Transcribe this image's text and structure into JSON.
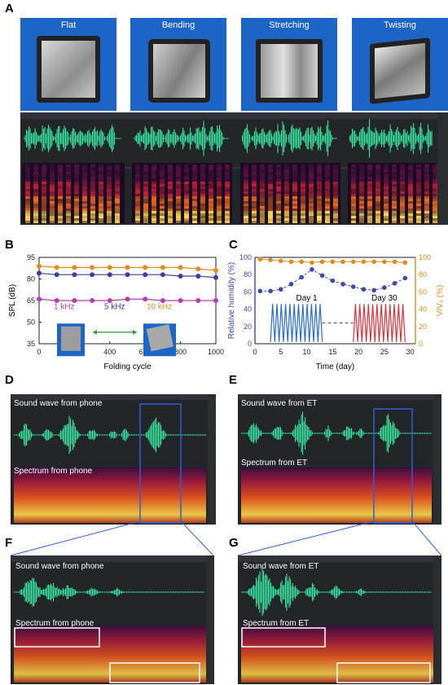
{
  "panels": {
    "A": {
      "label": "A",
      "photos": [
        "Flat",
        "Bending",
        "Stretching",
        "Twisting"
      ]
    },
    "B": {
      "label": "B"
    },
    "C": {
      "label": "C"
    },
    "D": {
      "label": "D",
      "wave_caption": "Sound wave from phone",
      "spec_caption": "Spectrum from phone"
    },
    "E": {
      "label": "E",
      "wave_caption": "Sound wave from ET",
      "spec_caption": "Spectrum from ET"
    },
    "F": {
      "label": "F",
      "wave_caption": "Sound wave from phone",
      "spec_caption": "Spectrum from phone"
    },
    "G": {
      "label": "G",
      "wave_caption": "Sound wave from ET",
      "spec_caption": "Spectrum from ET"
    }
  },
  "chart_data": [
    {
      "type": "line",
      "panel": "B",
      "xlabel": "Folding cycle",
      "ylabel": "SPL (dB)",
      "xlim": [
        0,
        1000
      ],
      "ylim": [
        35,
        95
      ],
      "yticks": [
        35,
        50,
        65,
        80,
        95
      ],
      "xticks": [
        0,
        200,
        400,
        600,
        800,
        1000
      ],
      "x": [
        0,
        100,
        200,
        300,
        400,
        500,
        600,
        700,
        800,
        900,
        1000
      ],
      "series": [
        {
          "name": "10 kHz",
          "color": "#e38b1e",
          "values": [
            89,
            88,
            88,
            88,
            88,
            88,
            88,
            88,
            88,
            87,
            86
          ]
        },
        {
          "name": "5 kHz",
          "color": "#3c3fa0",
          "values": [
            84,
            83,
            83,
            83,
            83,
            83,
            83,
            83,
            82,
            82,
            81
          ]
        },
        {
          "name": "1 kHz",
          "color": "#b43eb0",
          "values": [
            66,
            65,
            65,
            65,
            65,
            66,
            66,
            65,
            65,
            65,
            65
          ]
        }
      ],
      "legend": [
        "1 kHz",
        "5 kHz",
        "10 kHz"
      ]
    },
    {
      "type": "line",
      "panel": "C",
      "xlabel": "Time (day)",
      "ylabel": "Relative humidity (%)",
      "ylabel_right": "V/V₀ (%)",
      "xlim": [
        0,
        31
      ],
      "ylim": [
        0,
        100
      ],
      "xticks": [
        0,
        5,
        10,
        15,
        20,
        25,
        30
      ],
      "yticks": [
        0,
        20,
        40,
        60,
        80,
        100
      ],
      "annotations": [
        "Day 1",
        "Day 30"
      ],
      "series": [
        {
          "name": "Relative humidity",
          "axis": "left",
          "color": "#3c4aa8",
          "x": [
            1,
            3,
            5,
            7,
            9,
            11,
            13,
            15,
            17,
            19,
            21,
            23,
            25,
            27,
            29
          ],
          "values": [
            61,
            61,
            63,
            69,
            77,
            86,
            79,
            73,
            69,
            66,
            63,
            62,
            65,
            70,
            76
          ]
        },
        {
          "name": "V/V0",
          "axis": "right",
          "color": "#e38b1e",
          "x": [
            1,
            3,
            5,
            7,
            9,
            11,
            13,
            15,
            17,
            19,
            21,
            23,
            25,
            27,
            29
          ],
          "values": [
            98,
            97,
            96,
            95,
            95,
            94,
            95,
            95,
            95,
            95,
            95,
            95,
            95,
            95,
            94
          ]
        }
      ]
    }
  ]
}
